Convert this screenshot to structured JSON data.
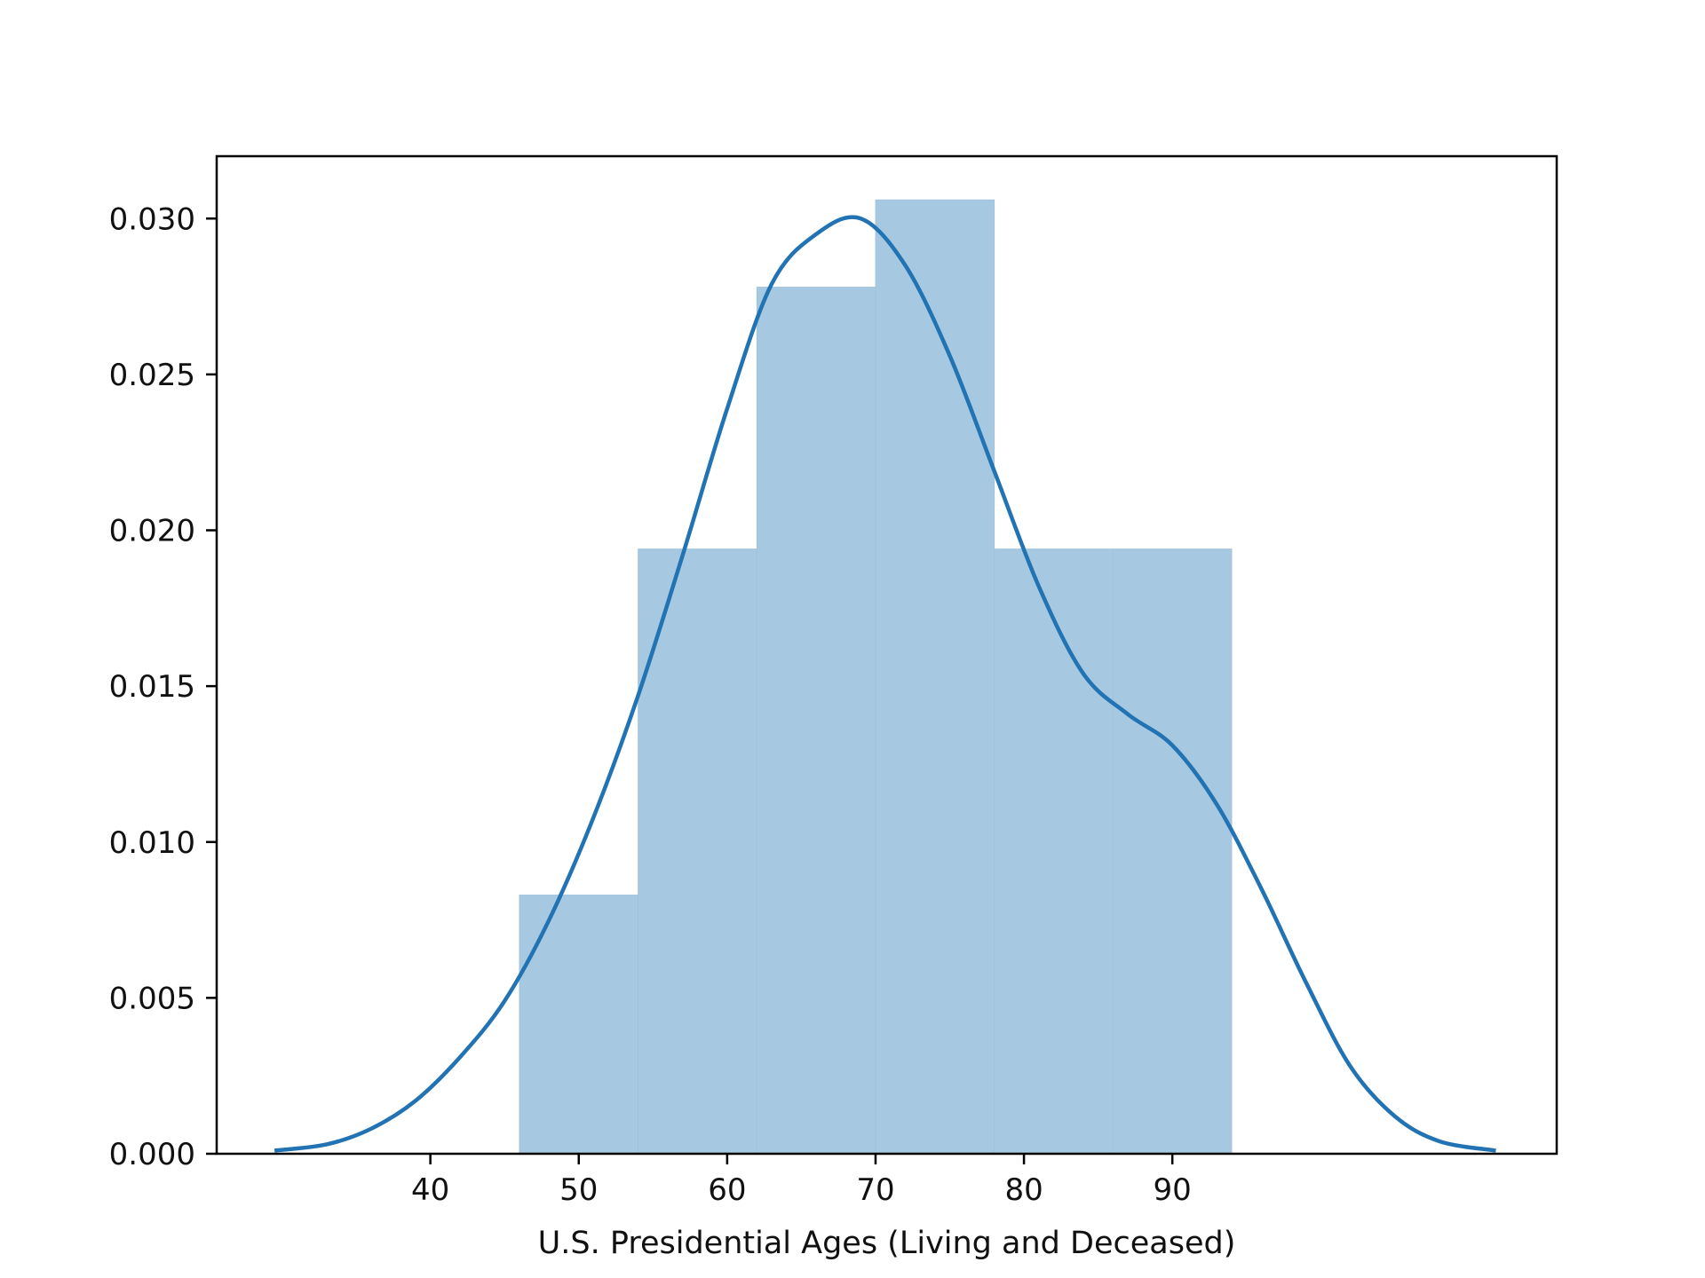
{
  "chart_data": {
    "type": "bar",
    "title": "",
    "xlabel": "U.S. Presidential Ages (Living and Deceased)",
    "ylabel": "",
    "xlim": [
      25.6,
      115.9
    ],
    "ylim": [
      0,
      0.032
    ],
    "grid": false,
    "legend": "none",
    "bar_color": "#a6c8e1",
    "line_color": "#2273b3",
    "x_ticks": [
      40,
      50,
      60,
      70,
      80,
      90
    ],
    "x_tick_labels": [
      "40",
      "50",
      "60",
      "70",
      "80",
      "90"
    ],
    "y_ticks": [
      0,
      0.005,
      0.01,
      0.015,
      0.02,
      0.025,
      0.03
    ],
    "y_tick_labels": [
      "0.000",
      "0.005",
      "0.010",
      "0.015",
      "0.020",
      "0.025",
      "0.030"
    ],
    "histogram": {
      "bins": [
        {
          "x0": 46,
          "x1": 54,
          "density": 0.0083
        },
        {
          "x0": 54,
          "x1": 62,
          "density": 0.0194
        },
        {
          "x0": 62,
          "x1": 70,
          "density": 0.0278
        },
        {
          "x0": 70,
          "x1": 78,
          "density": 0.0306
        },
        {
          "x0": 78,
          "x1": 86,
          "density": 0.0194
        },
        {
          "x0": 86,
          "x1": 94,
          "density": 0.0194
        }
      ]
    },
    "kde": {
      "x": [
        29.5,
        33,
        36,
        39,
        42,
        45,
        48,
        51,
        54,
        57,
        60,
        63,
        66,
        69,
        72,
        75,
        78,
        81,
        84,
        87,
        90,
        93,
        96,
        99,
        102,
        105,
        108,
        111.8
      ],
      "y": [
        0.0001,
        0.0003,
        0.0008,
        0.0017,
        0.0031,
        0.0049,
        0.0075,
        0.0108,
        0.0147,
        0.0192,
        0.0239,
        0.0279,
        0.0295,
        0.03,
        0.0285,
        0.0256,
        0.0219,
        0.0182,
        0.0154,
        0.0141,
        0.0131,
        0.0112,
        0.0085,
        0.0055,
        0.0028,
        0.0012,
        0.0004,
        0.0001
      ]
    }
  }
}
